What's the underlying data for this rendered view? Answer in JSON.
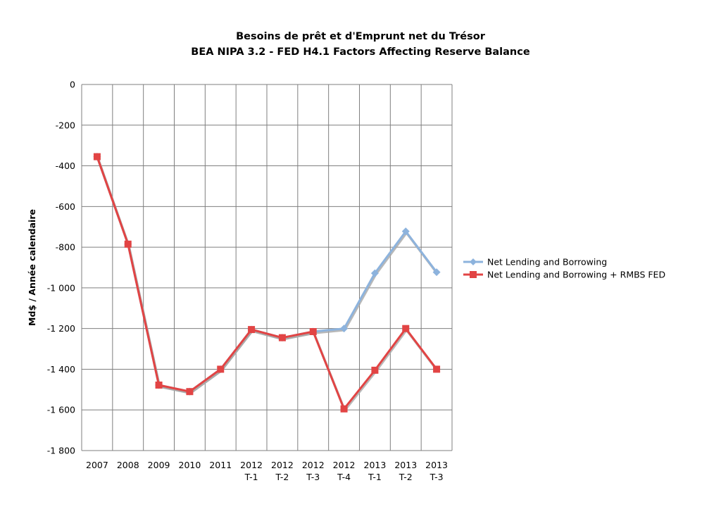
{
  "chart_data": {
    "type": "line",
    "title": "Besoins de prêt et d'Emprunt net du Trésor",
    "subtitle": "BEA NIPA 3.2 - FED H4.1 Factors Affecting Reserve Balance",
    "ylabel": "Md$  /  Année calendaire",
    "xlabel": "",
    "categories": [
      [
        "2007"
      ],
      [
        "2008"
      ],
      [
        "2009"
      ],
      [
        "2010"
      ],
      [
        "2011"
      ],
      [
        "2012",
        "T-1"
      ],
      [
        "2012",
        "T-2"
      ],
      [
        "2012",
        "T-3"
      ],
      [
        "2012",
        "T-4"
      ],
      [
        "2013",
        "T-1"
      ],
      [
        "2013",
        "T-2"
      ],
      [
        "2013",
        "T-3"
      ]
    ],
    "ylim": [
      -1800,
      0
    ],
    "yticks": [
      0,
      -200,
      -400,
      -600,
      -800,
      -1000,
      -1200,
      -1400,
      -1600,
      -1800
    ],
    "ytick_labels": [
      "0",
      "-200",
      "-400",
      "-600",
      "-800",
      "-1 000",
      "-1 200",
      "-1 400",
      "-1 600",
      "-1 800"
    ],
    "grid": true,
    "legend_position": "right",
    "series": [
      {
        "name": "Net Lending and Borrowing",
        "color": "#8db3dd",
        "marker": "diamond",
        "values": [
          -355,
          -785,
          -1478,
          -1510,
          -1400,
          -1205,
          -1245,
          -1215,
          -1200,
          -928,
          -722,
          -923
        ]
      },
      {
        "name": "Net Lending and Borrowing + RMBS FED",
        "color": "#e24444",
        "marker": "square",
        "values": [
          -355,
          -785,
          -1478,
          -1510,
          -1400,
          -1205,
          -1245,
          -1215,
          -1595,
          -1405,
          -1200,
          -1400
        ]
      }
    ]
  }
}
